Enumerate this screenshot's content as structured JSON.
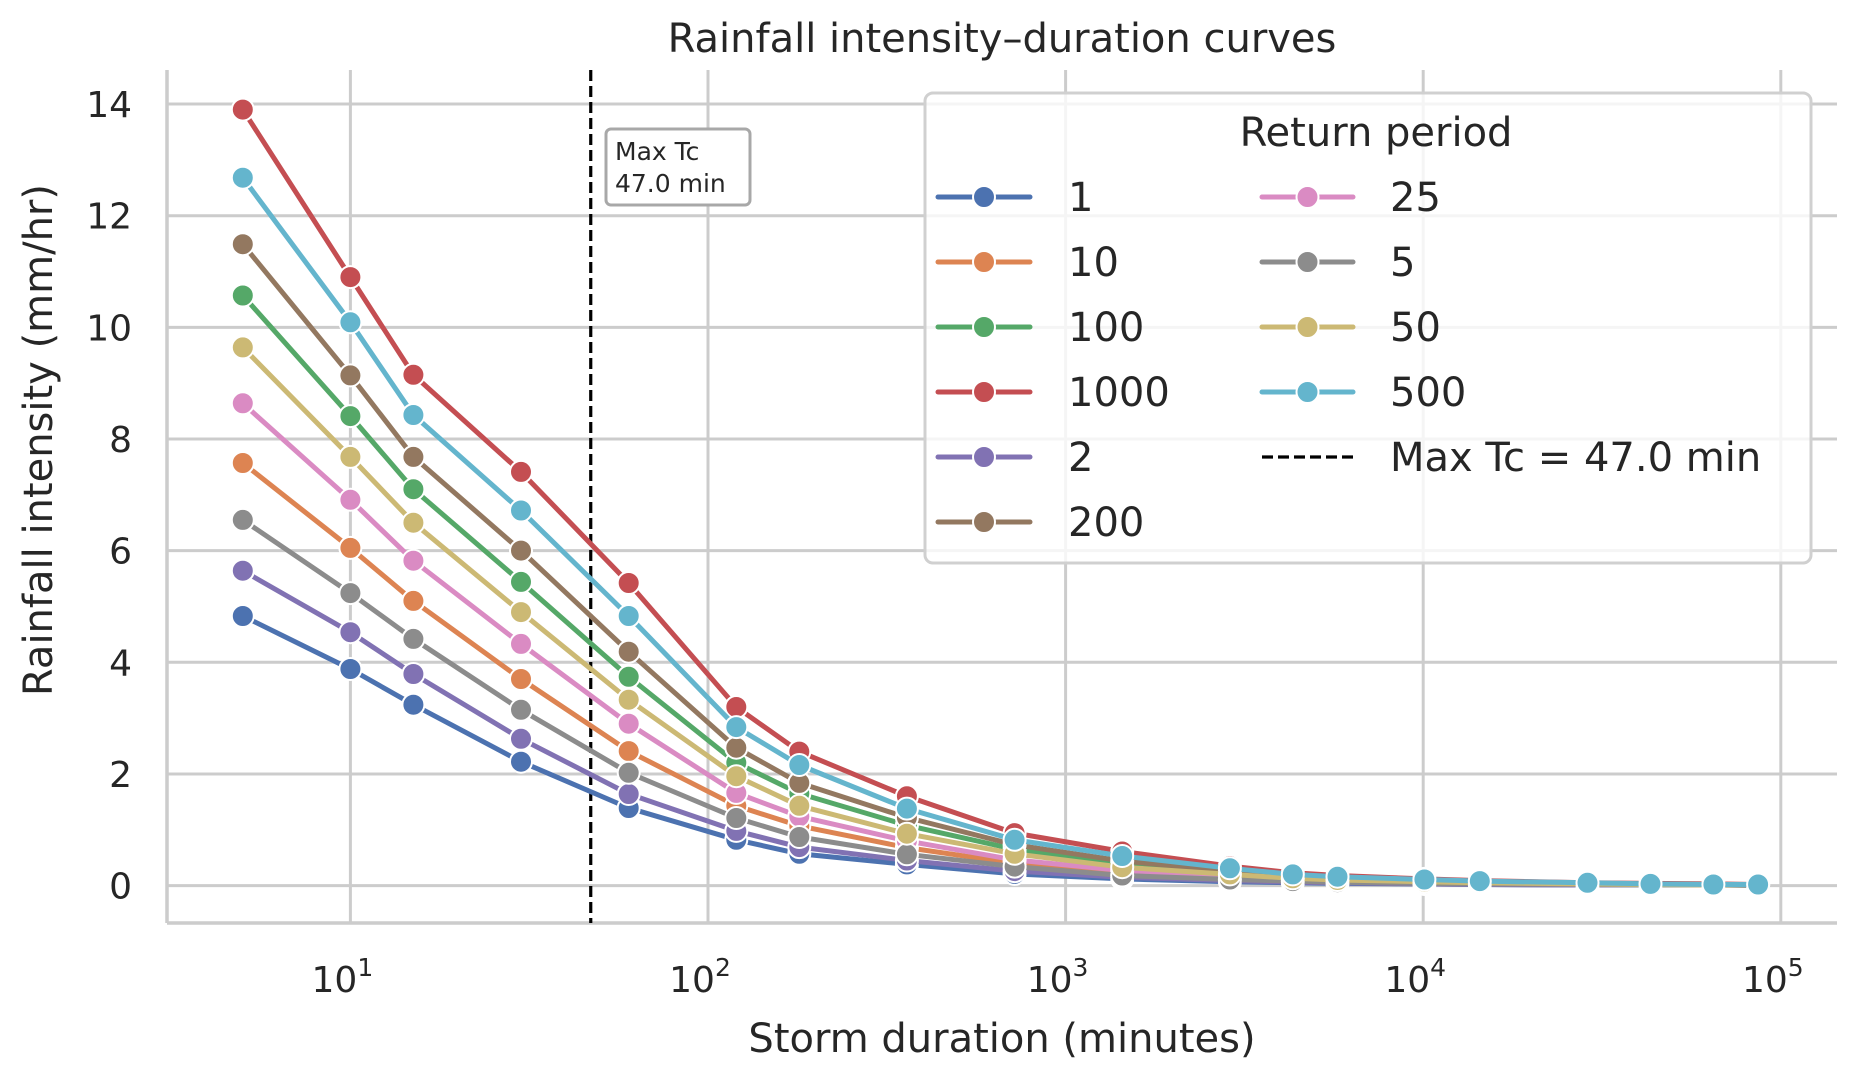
{
  "chart_data": {
    "type": "line",
    "title": "Rainfall intensity–duration curves",
    "xlabel": "Storm duration (minutes)",
    "ylabel": "Rainfall intensity (mm/hr)",
    "xscale": "log",
    "xlim": [
      3.07,
      143600
    ],
    "ylim": [
      -0.67,
      14.61
    ],
    "grid": true,
    "x_ticks": [
      {
        "value": 10,
        "base": "10",
        "exp": "1"
      },
      {
        "value": 100,
        "base": "10",
        "exp": "2"
      },
      {
        "value": 1000,
        "base": "10",
        "exp": "3"
      },
      {
        "value": 10000,
        "base": "10",
        "exp": "4"
      },
      {
        "value": 100000,
        "base": "10",
        "exp": "5"
      }
    ],
    "y_ticks": [
      0,
      2,
      4,
      6,
      8,
      10,
      12,
      14
    ],
    "x": [
      5,
      10,
      15,
      30,
      60,
      120,
      180,
      360,
      720,
      1440,
      2880,
      4320,
      5760,
      10080,
      14400,
      28800,
      43200,
      64800,
      86400
    ],
    "legend": {
      "title": "Return period",
      "placement": "top-right",
      "columns": 2
    },
    "series": [
      {
        "name": "1",
        "color": "#4c72b0",
        "values": [
          4.83,
          3.88,
          3.24,
          2.22,
          1.39,
          0.82,
          0.57,
          0.38,
          0.21,
          0.12,
          0.07,
          0.05,
          0.04,
          0.03,
          0.02,
          0.01,
          0.01,
          0.01,
          0.0
        ]
      },
      {
        "name": "10",
        "color": "#dd8452",
        "values": [
          7.57,
          6.05,
          5.1,
          3.7,
          2.41,
          1.43,
          1.07,
          0.68,
          0.4,
          0.23,
          0.14,
          0.09,
          0.07,
          0.05,
          0.03,
          0.02,
          0.01,
          0.01,
          0.01
        ]
      },
      {
        "name": "100",
        "color": "#55a868",
        "values": [
          10.57,
          8.41,
          7.1,
          5.44,
          3.74,
          2.2,
          1.65,
          1.08,
          0.65,
          0.38,
          0.23,
          0.15,
          0.12,
          0.08,
          0.06,
          0.03,
          0.02,
          0.02,
          0.01
        ]
      },
      {
        "name": "1000",
        "color": "#c44e52",
        "values": [
          13.9,
          10.9,
          9.15,
          7.41,
          5.42,
          3.2,
          2.4,
          1.6,
          0.94,
          0.61,
          0.35,
          0.23,
          0.18,
          0.12,
          0.09,
          0.05,
          0.04,
          0.03,
          0.02
        ]
      },
      {
        "name": "2",
        "color": "#8172b3",
        "values": [
          5.64,
          4.54,
          3.79,
          2.63,
          1.64,
          0.98,
          0.69,
          0.45,
          0.26,
          0.15,
          0.09,
          0.06,
          0.05,
          0.03,
          0.02,
          0.01,
          0.01,
          0.01,
          0.01
        ]
      },
      {
        "name": "200",
        "color": "#937860",
        "values": [
          11.49,
          9.14,
          7.68,
          6.0,
          4.19,
          2.47,
          1.84,
          1.22,
          0.73,
          0.44,
          0.26,
          0.17,
          0.13,
          0.09,
          0.07,
          0.04,
          0.03,
          0.02,
          0.01
        ]
      },
      {
        "name": "25",
        "color": "#da8bc3",
        "values": [
          8.64,
          6.91,
          5.82,
          4.33,
          2.9,
          1.66,
          1.24,
          0.8,
          0.46,
          0.27,
          0.17,
          0.11,
          0.09,
          0.06,
          0.04,
          0.02,
          0.02,
          0.01,
          0.01
        ]
      },
      {
        "name": "5",
        "color": "#8c8c8c",
        "values": [
          6.55,
          5.24,
          4.42,
          3.15,
          2.02,
          1.21,
          0.87,
          0.56,
          0.34,
          0.18,
          0.11,
          0.08,
          0.06,
          0.04,
          0.03,
          0.02,
          0.01,
          0.01,
          0.01
        ]
      },
      {
        "name": "50",
        "color": "#ccb974",
        "values": [
          9.64,
          7.68,
          6.5,
          4.9,
          3.33,
          1.96,
          1.43,
          0.93,
          0.57,
          0.33,
          0.2,
          0.13,
          0.1,
          0.07,
          0.05,
          0.03,
          0.02,
          0.01,
          0.01
        ]
      },
      {
        "name": "500",
        "color": "#64b5cd",
        "values": [
          12.68,
          10.09,
          8.43,
          6.72,
          4.83,
          2.84,
          2.16,
          1.38,
          0.82,
          0.53,
          0.31,
          0.2,
          0.16,
          0.11,
          0.08,
          0.05,
          0.03,
          0.02,
          0.02
        ]
      }
    ],
    "reference_line": {
      "orientation": "vertical",
      "x": 47.0,
      "style": "dashed",
      "color": "#000000",
      "label": "Max Tc = 47.0 min"
    },
    "annotation": {
      "line1": "Max Tc",
      "line2": "47.0 min"
    }
  }
}
